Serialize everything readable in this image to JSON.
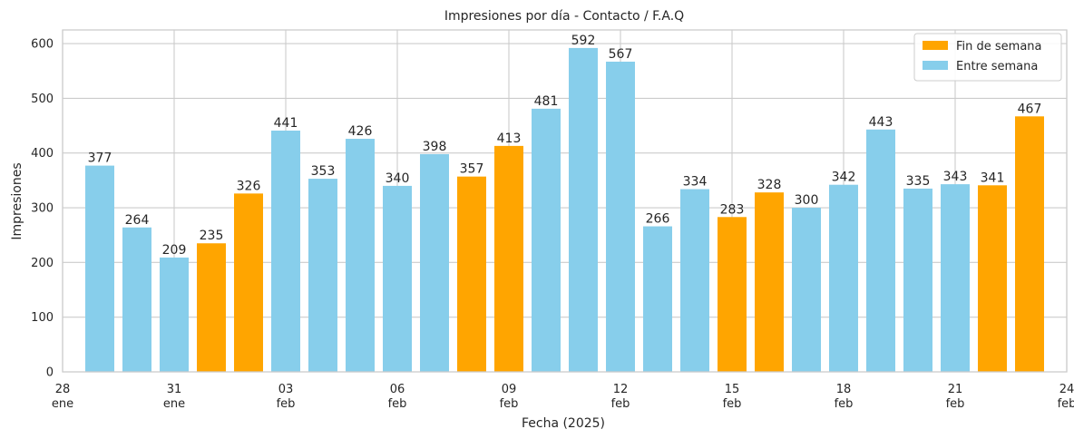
{
  "chart_data": {
    "type": "bar",
    "title": "Impresiones por día - Contacto / F.A.Q",
    "xlabel": "Fecha (2025)",
    "ylabel": "Impresiones",
    "ylim": [
      0,
      625
    ],
    "xlim": [
      "2025-01-28",
      "2025-02-24"
    ],
    "yticks": [
      0,
      100,
      200,
      300,
      400,
      500,
      600
    ],
    "xticks": [
      {
        "date": "2025-01-28",
        "day": "28",
        "month": "ene"
      },
      {
        "date": "2025-01-31",
        "day": "31",
        "month": "ene"
      },
      {
        "date": "2025-02-03",
        "day": "03",
        "month": "feb"
      },
      {
        "date": "2025-02-06",
        "day": "06",
        "month": "feb"
      },
      {
        "date": "2025-02-09",
        "day": "09",
        "month": "feb"
      },
      {
        "date": "2025-02-12",
        "day": "12",
        "month": "feb"
      },
      {
        "date": "2025-02-15",
        "day": "15",
        "month": "feb"
      },
      {
        "date": "2025-02-18",
        "day": "18",
        "month": "feb"
      },
      {
        "date": "2025-02-21",
        "day": "21",
        "month": "feb"
      },
      {
        "date": "2025-02-24",
        "day": "24",
        "month": "feb"
      }
    ],
    "grid": true,
    "legend_position": "top-right",
    "series": [
      {
        "name": "Fin de semana",
        "color": "#FFA500"
      },
      {
        "name": "Entre semana",
        "color": "#87CEEB"
      }
    ],
    "bars": [
      {
        "date": "2025-01-29",
        "value": 377,
        "series": "Entre semana"
      },
      {
        "date": "2025-01-30",
        "value": 264,
        "series": "Entre semana"
      },
      {
        "date": "2025-01-31",
        "value": 209,
        "series": "Entre semana"
      },
      {
        "date": "2025-02-01",
        "value": 235,
        "series": "Fin de semana"
      },
      {
        "date": "2025-02-02",
        "value": 326,
        "series": "Fin de semana"
      },
      {
        "date": "2025-02-03",
        "value": 441,
        "series": "Entre semana"
      },
      {
        "date": "2025-02-04",
        "value": 353,
        "series": "Entre semana"
      },
      {
        "date": "2025-02-05",
        "value": 426,
        "series": "Entre semana"
      },
      {
        "date": "2025-02-06",
        "value": 340,
        "series": "Entre semana"
      },
      {
        "date": "2025-02-07",
        "value": 398,
        "series": "Entre semana"
      },
      {
        "date": "2025-02-08",
        "value": 357,
        "series": "Fin de semana"
      },
      {
        "date": "2025-02-09",
        "value": 413,
        "series": "Fin de semana"
      },
      {
        "date": "2025-02-10",
        "value": 481,
        "series": "Entre semana"
      },
      {
        "date": "2025-02-11",
        "value": 592,
        "series": "Entre semana"
      },
      {
        "date": "2025-02-12",
        "value": 567,
        "series": "Entre semana"
      },
      {
        "date": "2025-02-13",
        "value": 266,
        "series": "Entre semana"
      },
      {
        "date": "2025-02-14",
        "value": 334,
        "series": "Entre semana"
      },
      {
        "date": "2025-02-15",
        "value": 283,
        "series": "Fin de semana"
      },
      {
        "date": "2025-02-16",
        "value": 328,
        "series": "Fin de semana"
      },
      {
        "date": "2025-02-17",
        "value": 300,
        "series": "Entre semana"
      },
      {
        "date": "2025-02-18",
        "value": 342,
        "series": "Entre semana"
      },
      {
        "date": "2025-02-19",
        "value": 443,
        "series": "Entre semana"
      },
      {
        "date": "2025-02-20",
        "value": 335,
        "series": "Entre semana"
      },
      {
        "date": "2025-02-21",
        "value": 343,
        "series": "Entre semana"
      },
      {
        "date": "2025-02-22",
        "value": 341,
        "series": "Fin de semana"
      },
      {
        "date": "2025-02-23",
        "value": 467,
        "series": "Fin de semana"
      }
    ]
  }
}
